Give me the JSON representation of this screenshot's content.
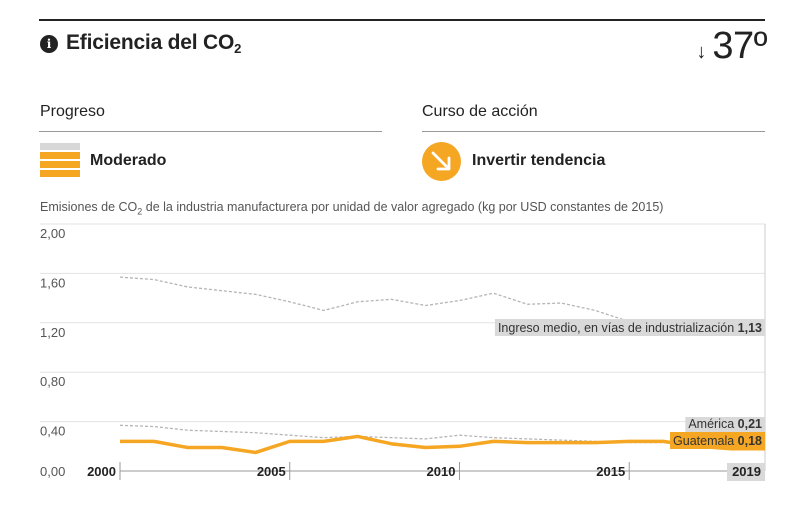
{
  "header": {
    "title": "Eficiencia del CO",
    "title_sub": "2",
    "rank_arrow": "↓",
    "rank": "37º",
    "info_icon": "info-icon"
  },
  "progress": {
    "label": "Progreso",
    "status": "Moderado",
    "level_filled": 3,
    "level_total": 4,
    "color": "#f5a623",
    "empty_color": "#d8d8d8"
  },
  "action": {
    "label": "Curso de acción",
    "status": "Invertir tendencia",
    "icon": "arrow-down-right-icon",
    "color": "#f5a623"
  },
  "chart_caption": {
    "pre": "Emisiones de CO",
    "sub": "2",
    "post": " de la industria manufacturera por unidad de valor agregado (kg por USD constantes de 2015)"
  },
  "chart_data": {
    "type": "line",
    "x": [
      2000,
      2001,
      2002,
      2003,
      2004,
      2005,
      2006,
      2007,
      2008,
      2009,
      2010,
      2011,
      2012,
      2013,
      2014,
      2015,
      2016,
      2017,
      2018,
      2019
    ],
    "ylim": [
      0,
      2.0
    ],
    "y_ticks": [
      "0,00",
      "0,40",
      "0,80",
      "1,20",
      "1,60",
      "2,00"
    ],
    "x_ticks": [
      "2000",
      "2005",
      "2010",
      "2015",
      "2019"
    ],
    "series": [
      {
        "name": "Ingreso medio, en vías de industrialización",
        "end_label": "1,13",
        "style": "dashed",
        "color": "#b5b5b5",
        "values": [
          1.57,
          1.55,
          1.49,
          1.46,
          1.43,
          1.37,
          1.3,
          1.37,
          1.39,
          1.34,
          1.38,
          1.44,
          1.35,
          1.36,
          1.3,
          1.21,
          1.16,
          1.14,
          1.13,
          1.13
        ]
      },
      {
        "name": "América",
        "end_label": "0,21",
        "style": "dashed",
        "color": "#b5b5b5",
        "values": [
          0.37,
          0.36,
          0.33,
          0.32,
          0.31,
          0.29,
          0.27,
          0.28,
          0.27,
          0.26,
          0.29,
          0.27,
          0.26,
          0.25,
          0.24,
          0.23,
          0.23,
          0.22,
          0.21,
          0.21
        ]
      },
      {
        "name": "Guatemala",
        "end_label": "0,18",
        "style": "solid",
        "color": "#f5a623",
        "values": [
          0.24,
          0.24,
          0.19,
          0.19,
          0.15,
          0.24,
          0.24,
          0.28,
          0.22,
          0.19,
          0.2,
          0.24,
          0.23,
          0.23,
          0.23,
          0.24,
          0.24,
          0.2,
          0.18,
          0.18
        ]
      }
    ]
  }
}
